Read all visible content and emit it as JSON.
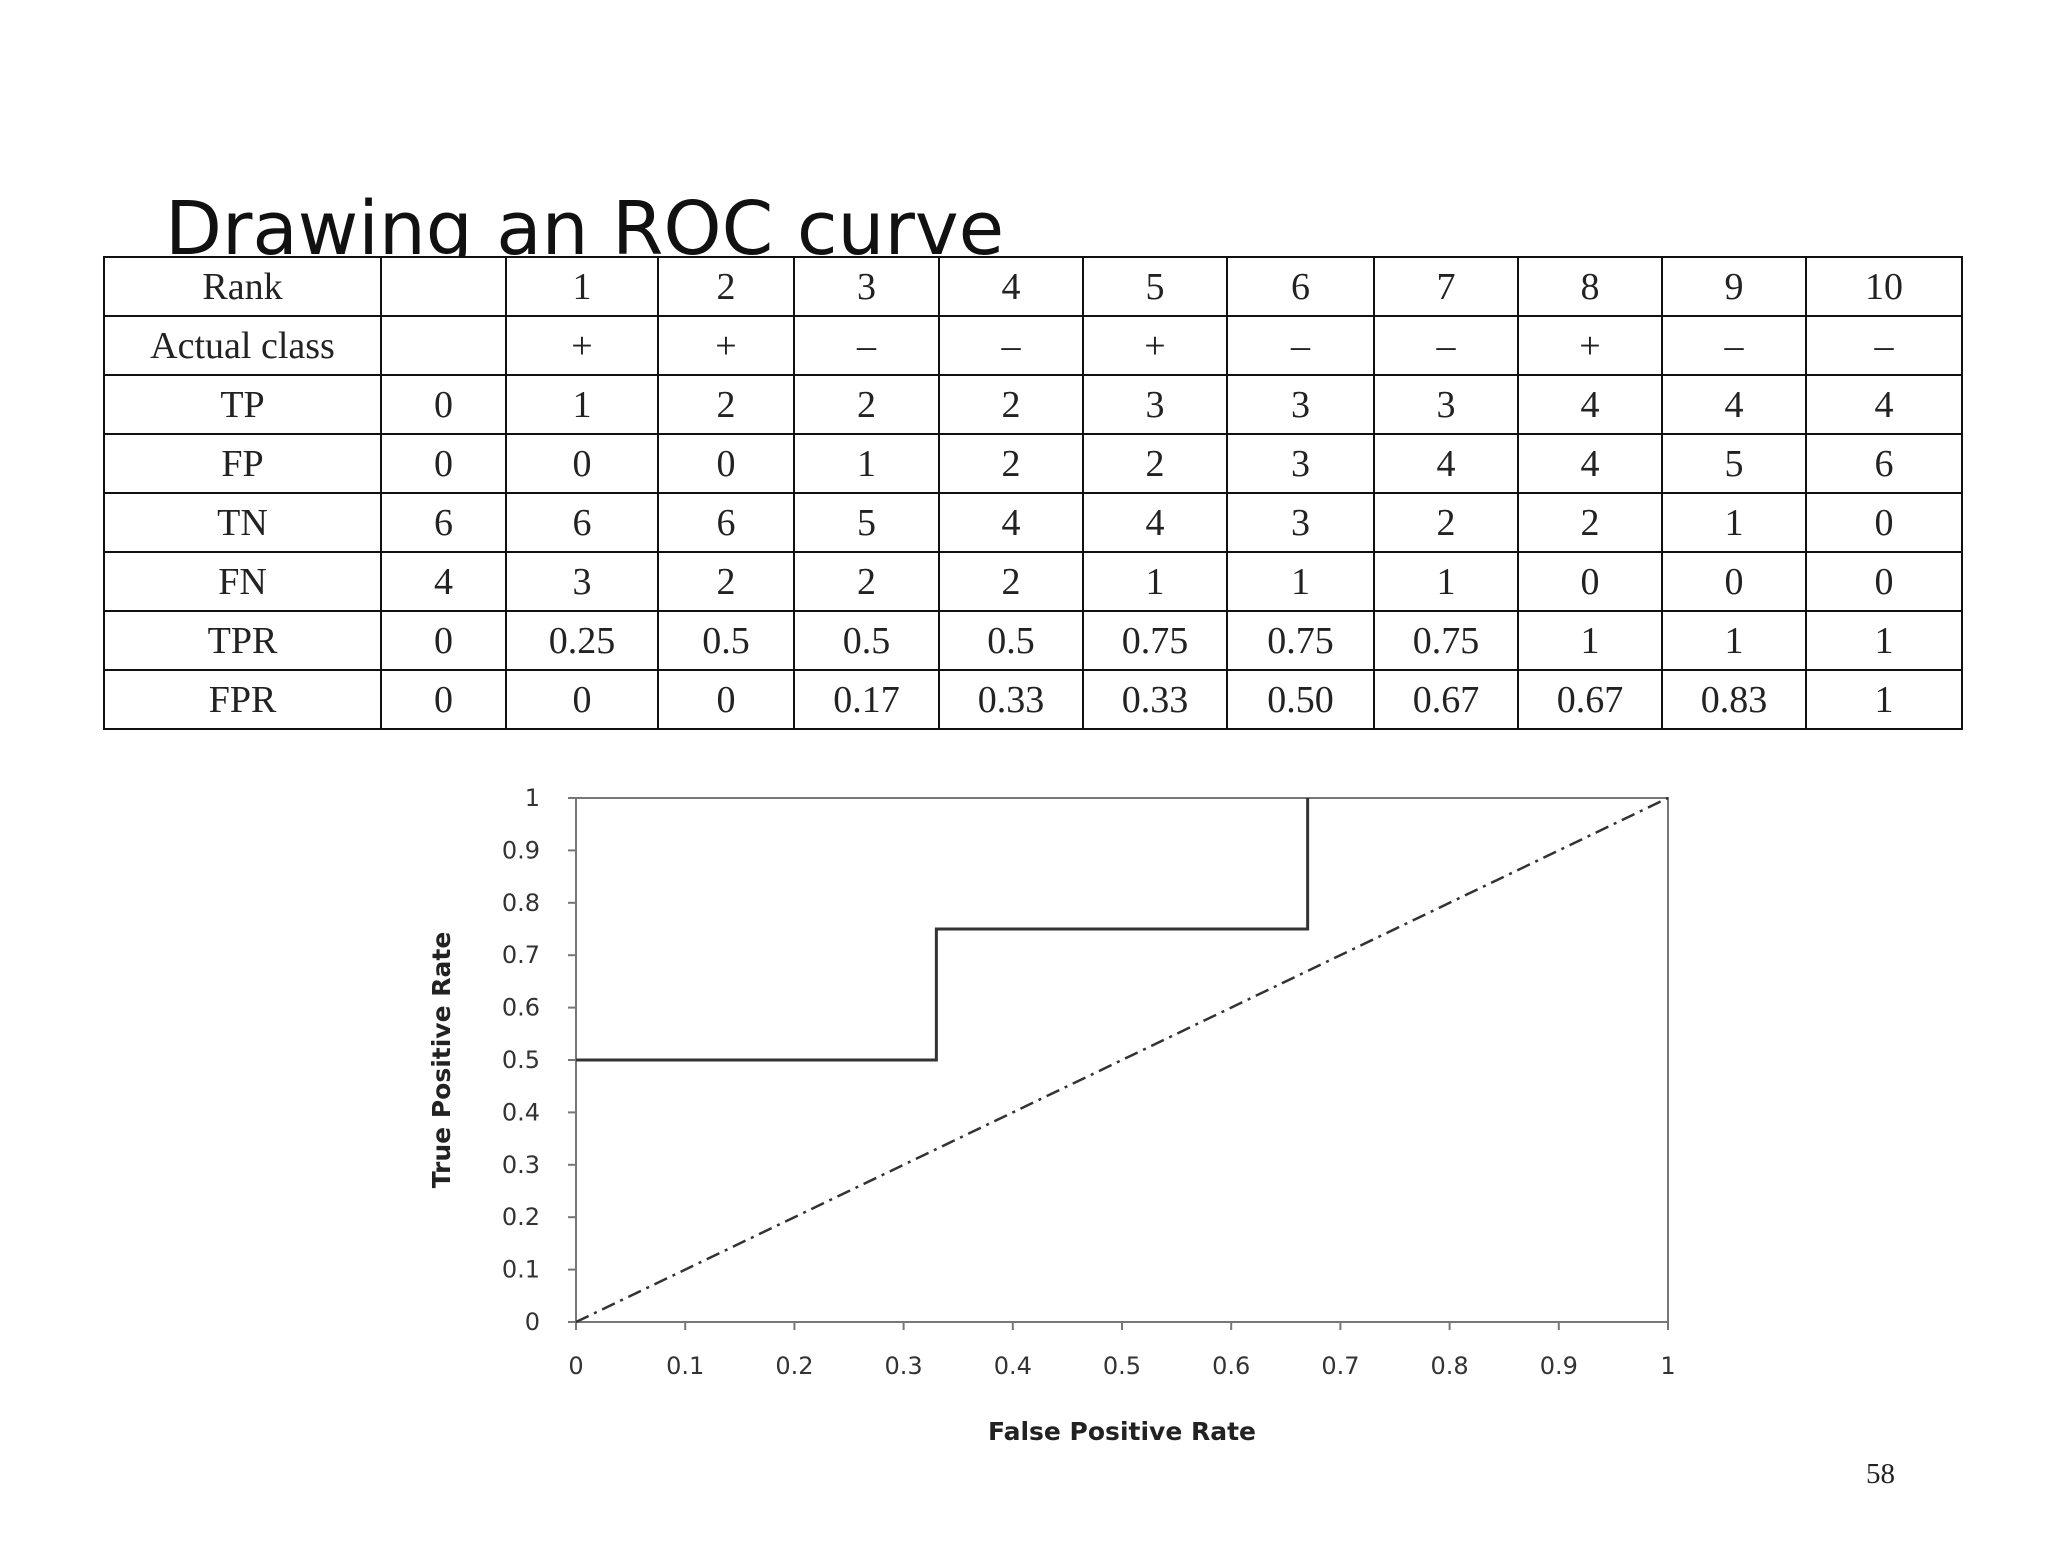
{
  "slide": {
    "title": "Drawing an ROC curve",
    "page_number": "58"
  },
  "table": {
    "rows": [
      {
        "label": "Rank",
        "cells": [
          "",
          "1",
          "2",
          "3",
          "4",
          "5",
          "6",
          "7",
          "8",
          "9",
          "10"
        ]
      },
      {
        "label": "Actual class",
        "cells": [
          "",
          "+",
          "+",
          "–",
          "–",
          "+",
          "–",
          "–",
          "+",
          "–",
          "–"
        ]
      },
      {
        "label": "TP",
        "cells": [
          "0",
          "1",
          "2",
          "2",
          "2",
          "3",
          "3",
          "3",
          "4",
          "4",
          "4"
        ]
      },
      {
        "label": "FP",
        "cells": [
          "0",
          "0",
          "0",
          "1",
          "2",
          "2",
          "3",
          "4",
          "4",
          "5",
          "6"
        ]
      },
      {
        "label": "TN",
        "cells": [
          "6",
          "6",
          "6",
          "5",
          "4",
          "4",
          "3",
          "2",
          "2",
          "1",
          "0"
        ]
      },
      {
        "label": "FN",
        "cells": [
          "4",
          "3",
          "2",
          "2",
          "2",
          "1",
          "1",
          "1",
          "0",
          "0",
          "0"
        ]
      },
      {
        "label": "TPR",
        "cells": [
          "0",
          "0.25",
          "0.5",
          "0.5",
          "0.5",
          "0.75",
          "0.75",
          "0.75",
          "1",
          "1",
          "1"
        ]
      },
      {
        "label": "FPR",
        "cells": [
          "0",
          "0",
          "0",
          "0.17",
          "0.33",
          "0.33",
          "0.50",
          "0.67",
          "0.67",
          "0.83",
          "1"
        ]
      }
    ]
  },
  "chart_data": {
    "type": "line",
    "title": "",
    "xlabel": "False Positive Rate",
    "ylabel": "True Positive Rate",
    "xlim": [
      0,
      1
    ],
    "ylim": [
      0,
      1
    ],
    "x_ticks": [
      "0",
      "0.1",
      "0.2",
      "0.3",
      "0.4",
      "0.5",
      "0.6",
      "0.7",
      "0.8",
      "0.9",
      "1"
    ],
    "y_ticks": [
      "0",
      "0.1",
      "0.2",
      "0.3",
      "0.4",
      "0.5",
      "0.6",
      "0.7",
      "0.8",
      "0.9",
      "1"
    ],
    "grid": false,
    "legend": "none",
    "series": [
      {
        "style": "solid-step",
        "color": "#333333",
        "x": [
          0,
          0.33,
          0.33,
          0.67,
          0.67
        ],
        "y": [
          0.5,
          0.5,
          0.75,
          0.75,
          1
        ]
      },
      {
        "style": "dash-dot",
        "color": "#333333",
        "x": [
          0,
          1
        ],
        "y": [
          0,
          1
        ]
      }
    ]
  }
}
